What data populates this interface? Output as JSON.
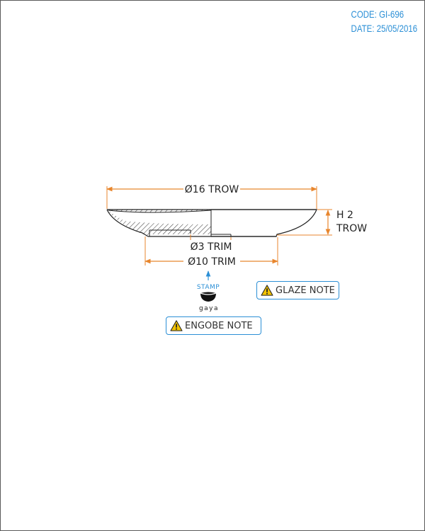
{
  "header": {
    "code": "CODE: GI-696",
    "date": "DATE: 25/05/2016"
  },
  "dimensions": {
    "outer_diameter": "Ø16 TROW",
    "height_value": "H 2",
    "height_unit": "TROW",
    "foot_inner_diameter": "Ø3 TRIM",
    "foot_outer_diameter": "Ø10 TRIM"
  },
  "stamp": {
    "label": "STAMP",
    "brand": "gaya"
  },
  "notes": {
    "glaze": "GLAZE NOTE",
    "engobe": "ENGOBE NOTE"
  },
  "colors": {
    "accent": "#2b8fd6",
    "dimension": "#e8862d",
    "warning": "#f2c200",
    "line": "#222222"
  },
  "icons": [
    "warning-triangle-icon",
    "stamp-arrow-icon",
    "gaya-logo-icon"
  ]
}
